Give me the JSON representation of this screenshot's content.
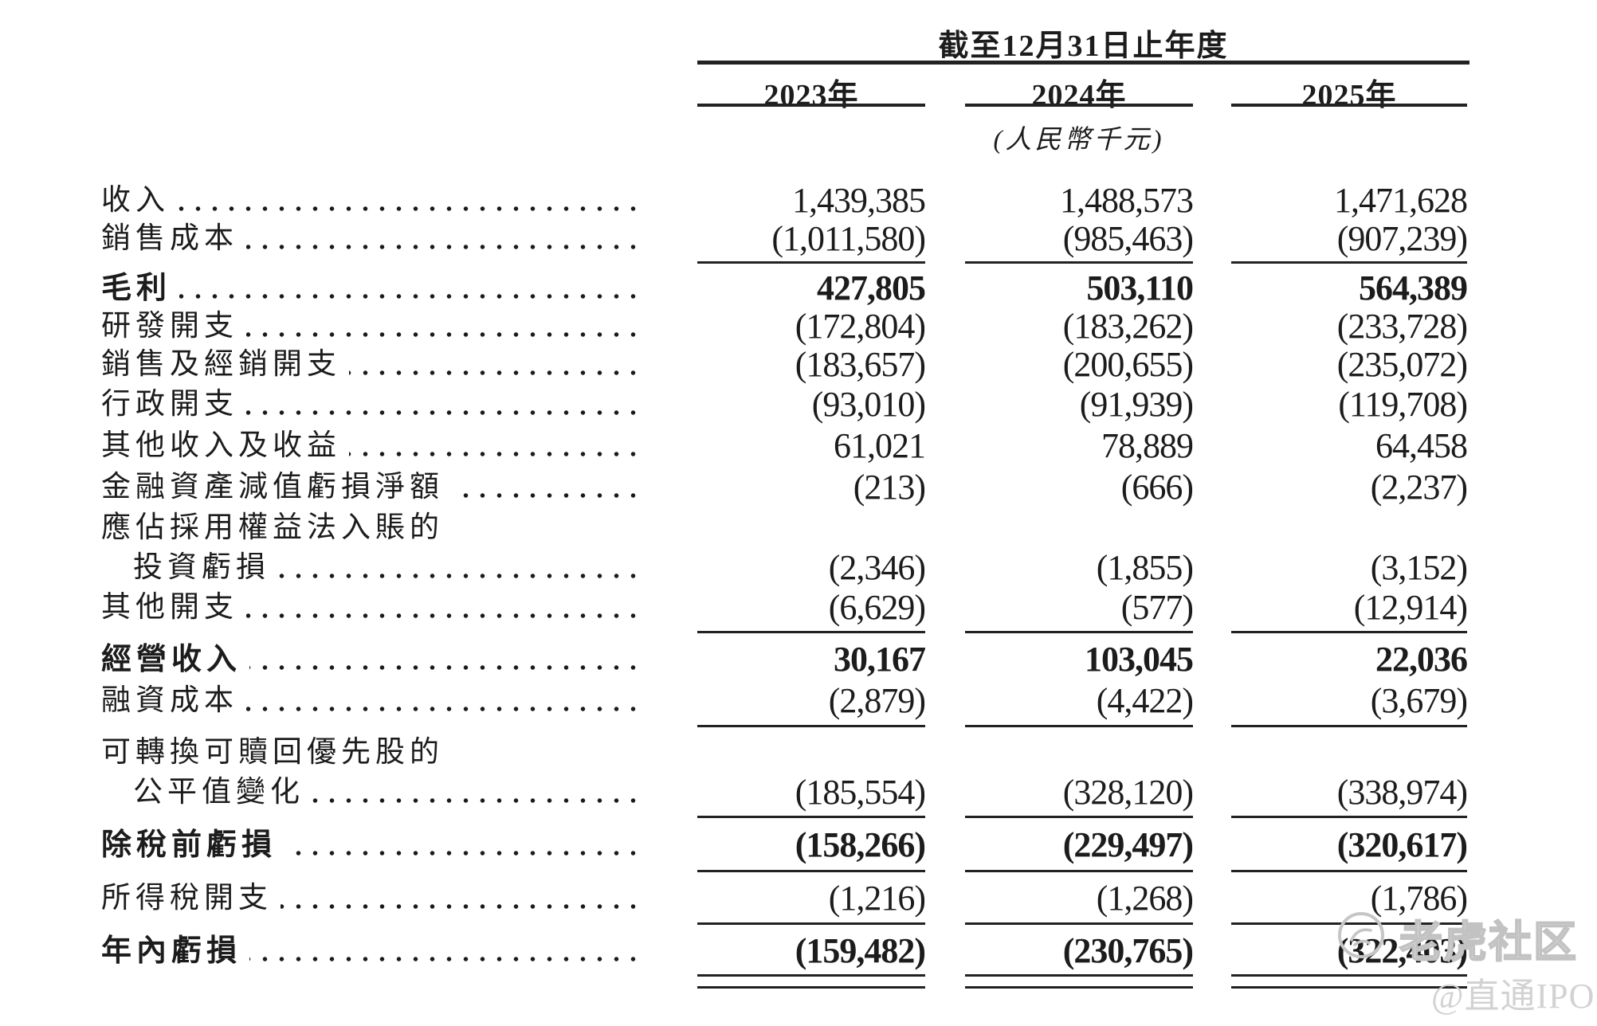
{
  "header": {
    "period_title": "截至12月31日止年度",
    "unit_note": "(人民幣千元)",
    "columns": [
      "2023年",
      "2024年",
      "2025年"
    ]
  },
  "rows": [
    {
      "label": "收入",
      "indent": false,
      "bold": false,
      "leader": true,
      "values": [
        "1,439,385",
        "1,488,573",
        "1,471,628"
      ],
      "rule": "none"
    },
    {
      "label": "銷售成本",
      "indent": false,
      "bold": false,
      "leader": true,
      "values": [
        "(1,011,580)",
        "(985,463)",
        "(907,239)"
      ],
      "rule": "single"
    },
    {
      "label": "毛利",
      "indent": false,
      "bold": true,
      "leader": true,
      "values": [
        "427,805",
        "503,110",
        "564,389"
      ],
      "rule": "none"
    },
    {
      "label": "研發開支",
      "indent": false,
      "bold": false,
      "leader": true,
      "values": [
        "(172,804)",
        "(183,262)",
        "(233,728)"
      ],
      "rule": "none"
    },
    {
      "label": "銷售及經銷開支",
      "indent": false,
      "bold": false,
      "leader": true,
      "values": [
        "(183,657)",
        "(200,655)",
        "(235,072)"
      ],
      "rule": "none"
    },
    {
      "label": "行政開支",
      "indent": false,
      "bold": false,
      "leader": true,
      "values": [
        "(93,010)",
        "(91,939)",
        "(119,708)"
      ],
      "rule": "none"
    },
    {
      "label": "其他收入及收益",
      "indent": false,
      "bold": false,
      "leader": true,
      "values": [
        "61,021",
        "78,889",
        "64,458"
      ],
      "rule": "none"
    },
    {
      "label": "金融資產減值虧損淨額",
      "indent": false,
      "bold": false,
      "leader": true,
      "values": [
        "(213)",
        "(666)",
        "(2,237)"
      ],
      "rule": "none"
    },
    {
      "label": "應佔採用權益法入賬的",
      "indent": false,
      "bold": false,
      "leader": false,
      "values": [
        "",
        "",
        ""
      ],
      "rule": "none"
    },
    {
      "label": "投資虧損",
      "indent": true,
      "bold": false,
      "leader": true,
      "values": [
        "(2,346)",
        "(1,855)",
        "(3,152)"
      ],
      "rule": "none"
    },
    {
      "label": "其他開支",
      "indent": false,
      "bold": false,
      "leader": true,
      "values": [
        "(6,629)",
        "(577)",
        "(12,914)"
      ],
      "rule": "single"
    },
    {
      "label": "經營收入",
      "indent": false,
      "bold": true,
      "leader": true,
      "values": [
        "30,167",
        "103,045",
        "22,036"
      ],
      "rule": "none"
    },
    {
      "label": "融資成本",
      "indent": false,
      "bold": false,
      "leader": true,
      "values": [
        "(2,879)",
        "(4,422)",
        "(3,679)"
      ],
      "rule": "single"
    },
    {
      "label": "可轉換可贖回優先股的",
      "indent": false,
      "bold": false,
      "leader": false,
      "values": [
        "",
        "",
        ""
      ],
      "rule": "none"
    },
    {
      "label": "公平值變化",
      "indent": true,
      "bold": false,
      "leader": true,
      "values": [
        "(185,554)",
        "(328,120)",
        "(338,974)"
      ],
      "rule": "single"
    },
    {
      "label": "除稅前虧損",
      "indent": false,
      "bold": true,
      "leader": true,
      "values": [
        "(158,266)",
        "(229,497)",
        "(320,617)"
      ],
      "rule": "single"
    },
    {
      "label": "所得稅開支",
      "indent": false,
      "bold": false,
      "leader": true,
      "values": [
        "(1,216)",
        "(1,268)",
        "(1,786)"
      ],
      "rule": "single"
    },
    {
      "label": "年內虧損",
      "indent": false,
      "bold": true,
      "leader": true,
      "values": [
        "(159,482)",
        "(230,765)",
        "(322,403)"
      ],
      "rule": "double"
    }
  ],
  "watermark": {
    "brand": "老虎社区",
    "handle": "@直通IPO"
  },
  "colors": {
    "text": "#1c1c1c",
    "rule": "#222222",
    "watermark": "#c9c9c9"
  }
}
